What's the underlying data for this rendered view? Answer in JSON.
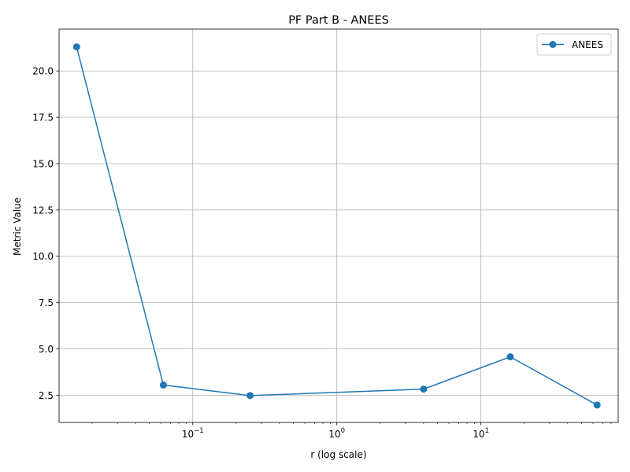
{
  "chart_data": {
    "type": "line",
    "title": "PF Part B - ANEES",
    "xlabel": "r (log scale)",
    "ylabel": "Metric Value",
    "xscale": "log",
    "xlim": [
      0.0118,
      89.7
    ],
    "ylim": [
      1.03,
      22.26
    ],
    "grid": true,
    "legend_position": "upper-right",
    "x_ticks": [
      {
        "value": 0.1,
        "base": "10",
        "exp": "−1"
      },
      {
        "value": 1,
        "base": "10",
        "exp": "0"
      },
      {
        "value": 10,
        "base": "10",
        "exp": "1"
      }
    ],
    "y_ticks": [
      2.5,
      5.0,
      7.5,
      10.0,
      12.5,
      15.0,
      17.5,
      20.0
    ],
    "y_tick_labels": [
      "2.5",
      "5.0",
      "7.5",
      "10.0",
      "12.5",
      "15.0",
      "17.5",
      "20.0"
    ],
    "series": [
      {
        "name": "ANEES",
        "color": "#1f77b4",
        "marker": "circle",
        "x": [
          0.015625,
          0.0625,
          0.25,
          4,
          16,
          64
        ],
        "values": [
          21.3,
          3.05,
          2.48,
          2.83,
          4.57,
          1.97
        ]
      }
    ]
  }
}
